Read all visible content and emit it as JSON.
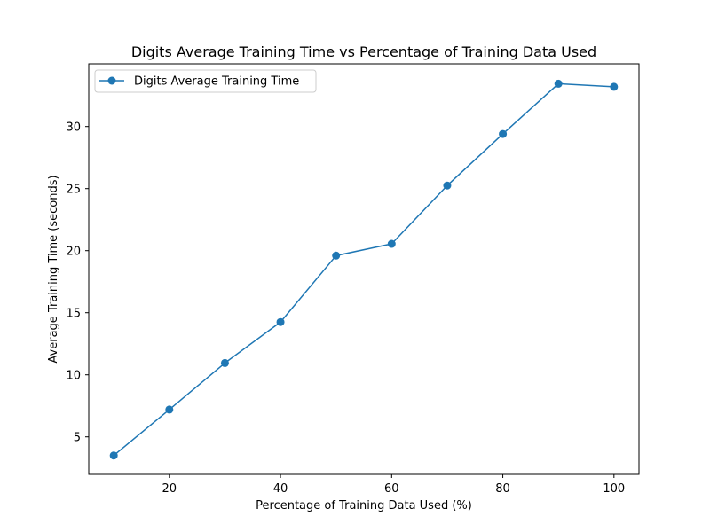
{
  "chart_data": {
    "type": "line",
    "title": "Digits Average Training Time vs Percentage of Training Data Used",
    "xlabel": "Percentage of Training Data Used (%)",
    "ylabel": "Average Training Time (seconds)",
    "xlim": [
      5.5,
      104.5
    ],
    "ylim": [
      1.98,
      35.05
    ],
    "xticks": [
      20,
      40,
      60,
      80,
      100
    ],
    "yticks": [
      5,
      10,
      15,
      20,
      25,
      30
    ],
    "xtick_labels": [
      "20",
      "40",
      "60",
      "80",
      "100"
    ],
    "ytick_labels": [
      "5",
      "10",
      "15",
      "20",
      "25",
      "30"
    ],
    "grid": false,
    "legend_position": "upper left",
    "series": [
      {
        "name": "Digits Average Training Time",
        "color": "#1f77b4",
        "marker": "circle",
        "x": [
          10,
          20,
          30,
          40,
          50,
          60,
          70,
          80,
          90,
          100
        ],
        "y": [
          3.5,
          7.2,
          10.95,
          14.25,
          19.6,
          20.55,
          25.25,
          29.4,
          33.45,
          33.2
        ]
      }
    ]
  }
}
